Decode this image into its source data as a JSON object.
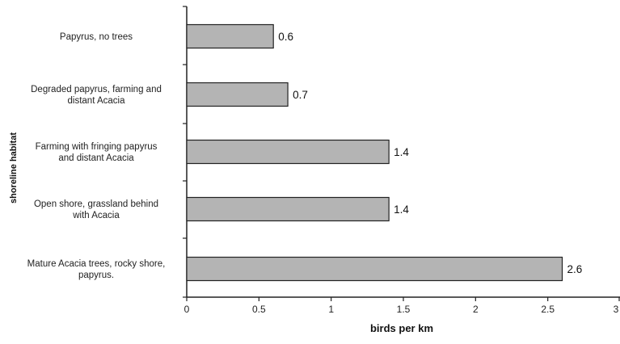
{
  "chart_data": {
    "type": "bar",
    "orientation": "horizontal",
    "categories": [
      [
        "Papyrus, no trees"
      ],
      [
        "Degraded papyrus, farming and",
        "distant Acacia"
      ],
      [
        "Farming with fringing papyrus",
        "and  distant Acacia"
      ],
      [
        "Open shore, grassland behind",
        "with  Acacia"
      ],
      [
        "Mature Acacia trees, rocky shore,",
        "papyrus."
      ]
    ],
    "values": [
      0.6,
      0.7,
      1.4,
      1.4,
      2.6
    ],
    "data_labels": [
      "0.6",
      "0.7",
      "1.4",
      "1.4",
      "2.6"
    ],
    "xlabel": "birds per km",
    "ylabel": "shoreline habitat",
    "xlim": [
      0,
      3
    ],
    "xticks": [
      0,
      0.5,
      1,
      1.5,
      2,
      2.5,
      3
    ],
    "xtick_labels": [
      "0",
      "0.5",
      "1",
      "1.5",
      "2",
      "2.5",
      "3"
    ],
    "grid": false,
    "legend": "none",
    "colors": {
      "bar_fill": "#b4b4b4",
      "bar_stroke": "#222222",
      "axis": "#222222"
    }
  }
}
